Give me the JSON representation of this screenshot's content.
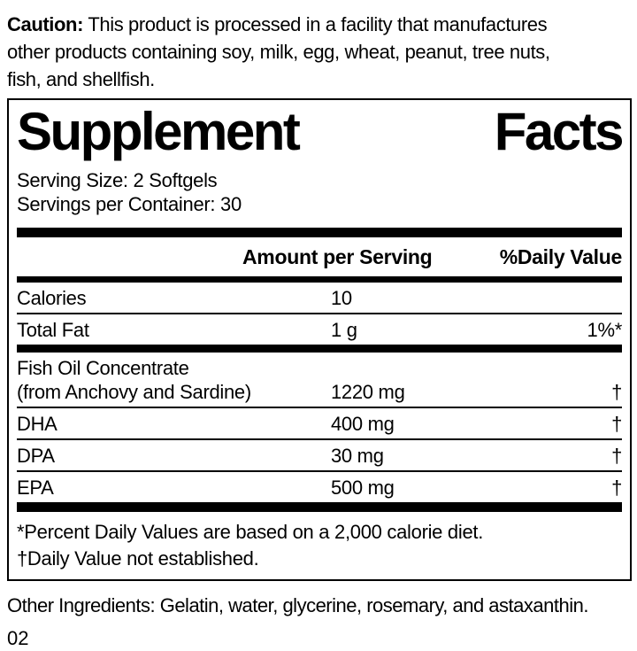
{
  "caution": {
    "label": "Caution:",
    "line1": "This product is processed in a facility that manufactures",
    "line2": "other products containing soy, milk, egg, wheat, peanut, tree nuts,",
    "line3": "fish, and shellfish."
  },
  "panel": {
    "title_word1": "Supplement",
    "title_word2": "Facts",
    "serving_size": "Serving Size: 2 Softgels",
    "servings_per_container": "Servings per Container: 30",
    "header": {
      "amount": "Amount per Serving",
      "daily_value": "%Daily Value"
    },
    "rows": [
      {
        "name": "Calories",
        "amount": "10",
        "dv": ""
      },
      {
        "name": "Total Fat",
        "amount": "1 g",
        "dv": "1%*"
      },
      {
        "name": "Fish Oil Concentrate",
        "name2": "(from Anchovy and Sardine)",
        "amount": "1220 mg",
        "dv": "†"
      },
      {
        "name": "DHA",
        "amount": "400 mg",
        "dv": "†"
      },
      {
        "name": "DPA",
        "amount": "30 mg",
        "dv": "†"
      },
      {
        "name": "EPA",
        "amount": "500 mg",
        "dv": "†"
      }
    ],
    "footnotes": [
      "*Percent Daily Values are based on a 2,000 calorie diet.",
      "†Daily Value not established."
    ]
  },
  "other_ingredients": "Other Ingredients: Gelatin, water, glycerine, rosemary, and astaxanthin.",
  "page_number": "02",
  "colors": {
    "ink": "#000000",
    "paper": "#ffffff"
  }
}
